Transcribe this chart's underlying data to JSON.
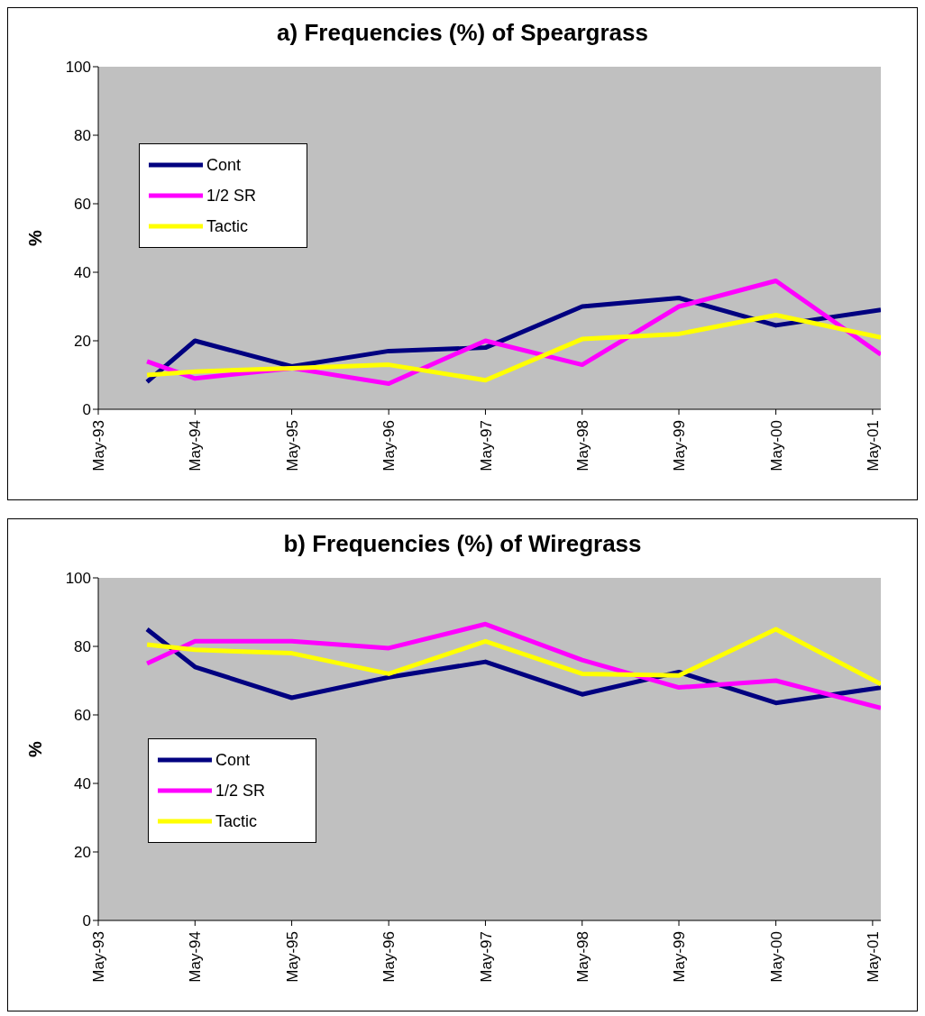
{
  "chart_data": [
    {
      "type": "line",
      "title": "a) Frequencies (%) of Speargrass",
      "ylabel": "%",
      "x": [
        "1993-11",
        "1994-05",
        "1995-05",
        "1996-05",
        "1997-05",
        "1998-05",
        "1999-05",
        "2000-05",
        "2001-06"
      ],
      "xlim": [
        "1993-05",
        "2001-06"
      ],
      "xticks": [
        {
          "value": "1993-05",
          "label": "May-93"
        },
        {
          "value": "1994-05",
          "label": "May-94"
        },
        {
          "value": "1995-05",
          "label": "May-95"
        },
        {
          "value": "1996-05",
          "label": "May-96"
        },
        {
          "value": "1997-05",
          "label": "May-97"
        },
        {
          "value": "1998-05",
          "label": "May-98"
        },
        {
          "value": "1999-05",
          "label": "May-99"
        },
        {
          "value": "2000-05",
          "label": "May-00"
        },
        {
          "value": "2001-05",
          "label": "May-01"
        }
      ],
      "ylim": [
        0,
        100
      ],
      "yticks": [
        0,
        20,
        40,
        60,
        80,
        100
      ],
      "grid": false,
      "legend": "top left",
      "marker": "none",
      "line_style": "solid",
      "series": [
        {
          "name": "Cont",
          "color": "#000080",
          "values": [
            8,
            20,
            12.5,
            17,
            18,
            30,
            32.5,
            24.5,
            29
          ]
        },
        {
          "name": "1/2 SR",
          "color": "#ff00ff",
          "values": [
            14,
            9,
            12,
            7.5,
            20,
            13,
            30,
            37.5,
            16
          ]
        },
        {
          "name": "Tactic",
          "color": "#ffff00",
          "values": [
            10,
            11,
            12,
            13,
            8.5,
            20.5,
            22,
            27.5,
            21
          ]
        }
      ]
    },
    {
      "type": "line",
      "title": "b) Frequencies (%) of Wiregrass",
      "ylabel": "%",
      "x": [
        "1993-11",
        "1994-05",
        "1995-05",
        "1996-05",
        "1997-05",
        "1998-05",
        "1999-05",
        "2000-05",
        "2001-06"
      ],
      "xlim": [
        "1993-05",
        "2001-06"
      ],
      "xticks": [
        {
          "value": "1993-05",
          "label": "May-93"
        },
        {
          "value": "1994-05",
          "label": "May-94"
        },
        {
          "value": "1995-05",
          "label": "May-95"
        },
        {
          "value": "1996-05",
          "label": "May-96"
        },
        {
          "value": "1997-05",
          "label": "May-97"
        },
        {
          "value": "1998-05",
          "label": "May-98"
        },
        {
          "value": "1999-05",
          "label": "May-99"
        },
        {
          "value": "2000-05",
          "label": "May-00"
        },
        {
          "value": "2001-05",
          "label": "May-01"
        }
      ],
      "ylim": [
        0,
        100
      ],
      "yticks": [
        0,
        20,
        40,
        60,
        80,
        100
      ],
      "grid": false,
      "legend": "left",
      "marker": "none",
      "line_style": "solid",
      "series": [
        {
          "name": "Cont",
          "color": "#000080",
          "values": [
            85,
            74,
            65,
            71,
            75.5,
            66,
            72.5,
            63.5,
            68
          ]
        },
        {
          "name": "1/2 SR",
          "color": "#ff00ff",
          "values": [
            75,
            81.5,
            81.5,
            79.5,
            86.5,
            76,
            68,
            70,
            62
          ]
        },
        {
          "name": "Tactic",
          "color": "#ffff00",
          "values": [
            80.5,
            79,
            78,
            72,
            81.5,
            72,
            71.5,
            85,
            69
          ]
        }
      ]
    }
  ]
}
